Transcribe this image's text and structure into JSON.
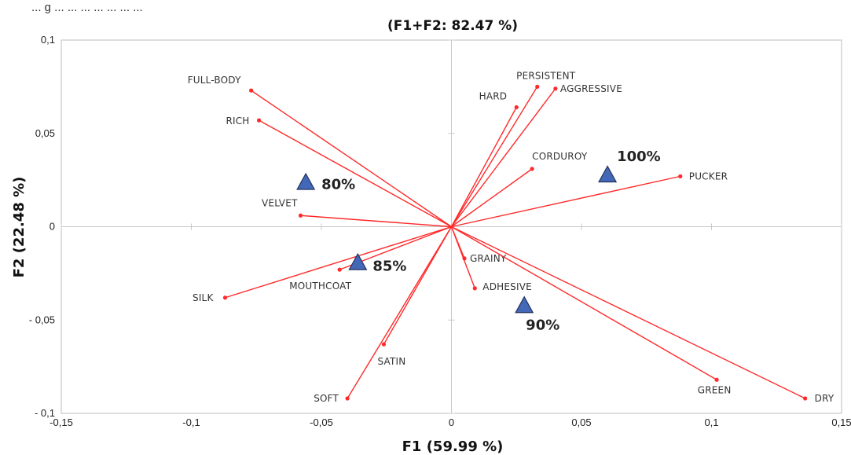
{
  "caption_fragment": "... g ... ... ... ... ... ... ...",
  "chart_data": {
    "type": "scatter",
    "title": "(F1+F2: 82.47 %)",
    "xlabel": "F1 (59.99 %)",
    "ylabel": "F2 (22.48 %)",
    "xlim": [
      -0.15,
      0.15
    ],
    "ylim": [
      -0.1,
      0.1
    ],
    "x_ticks": [
      -0.15,
      -0.1,
      -0.05,
      0,
      0.05,
      0.1,
      0.15
    ],
    "x_tick_labels": [
      "-0,15",
      "-0,1",
      "-0,05",
      "0",
      "0,05",
      "0,1",
      "0,15"
    ],
    "y_ticks": [
      -0.1,
      -0.05,
      0,
      0.05,
      0.1
    ],
    "y_tick_labels": [
      "- 0,1",
      "- 0,05",
      "0",
      "0,05",
      "0,1"
    ],
    "grid": false,
    "variables": [
      {
        "label": "FULL-BODY",
        "x": -0.077,
        "y": 0.073
      },
      {
        "label": "RICH",
        "x": -0.074,
        "y": 0.057
      },
      {
        "label": "VELVET",
        "x": -0.058,
        "y": 0.006
      },
      {
        "label": "MOUTHCOAT",
        "x": -0.043,
        "y": -0.023
      },
      {
        "label": "SILK",
        "x": -0.087,
        "y": -0.038
      },
      {
        "label": "SATIN",
        "x": -0.026,
        "y": -0.063
      },
      {
        "label": "SOFT",
        "x": -0.04,
        "y": -0.092
      },
      {
        "label": "PERSISTENT",
        "x": 0.033,
        "y": 0.075
      },
      {
        "label": "AGGRESSIVE",
        "x": 0.04,
        "y": 0.074
      },
      {
        "label": "HARD",
        "x": 0.025,
        "y": 0.064
      },
      {
        "label": "CORDUROY",
        "x": 0.031,
        "y": 0.031
      },
      {
        "label": "PUCKER",
        "x": 0.088,
        "y": 0.027
      },
      {
        "label": "GRAINY",
        "x": 0.005,
        "y": -0.017
      },
      {
        "label": "ADHESIVE",
        "x": 0.009,
        "y": -0.033
      },
      {
        "label": "GREEN",
        "x": 0.102,
        "y": -0.082
      },
      {
        "label": "DRY",
        "x": 0.136,
        "y": -0.092
      }
    ],
    "observations": [
      {
        "label": "80%",
        "x": -0.056,
        "y": 0.024
      },
      {
        "label": "85%",
        "x": -0.036,
        "y": -0.019
      },
      {
        "label": "90%",
        "x": 0.028,
        "y": -0.042
      },
      {
        "label": "100%",
        "x": 0.06,
        "y": 0.028
      }
    ],
    "colors": {
      "vector": "#ff2a2a",
      "observation": "#4468b8"
    }
  }
}
